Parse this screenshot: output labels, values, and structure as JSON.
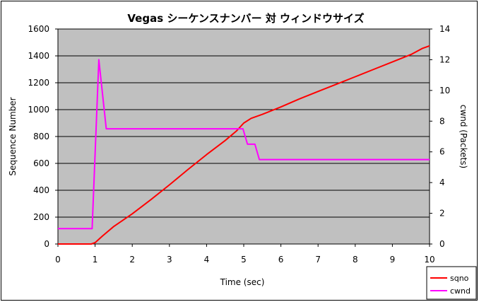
{
  "chart_data": {
    "type": "line",
    "title": "Vegas シーケンスナンバー 対 ウィンドウサイズ",
    "xlabel": "Time (sec)",
    "ylabel": "Sequence Number",
    "y2label": "cwnd (Packets)",
    "xlim": [
      0,
      10
    ],
    "ylim": [
      0,
      1600
    ],
    "y2lim": [
      0,
      14
    ],
    "x_ticks": [
      "0",
      "1",
      "2",
      "3",
      "4",
      "5",
      "6",
      "7",
      "8",
      "9",
      "10"
    ],
    "y_ticks": [
      "0",
      "200",
      "400",
      "600",
      "800",
      "1000",
      "1200",
      "1400",
      "1600"
    ],
    "y2_ticks": [
      "0",
      "2",
      "4",
      "6",
      "8",
      "10",
      "12",
      "14"
    ],
    "grid": true,
    "legend_position": "bottom-right",
    "series": [
      {
        "name": "sqno",
        "axis": "left",
        "color": "#ff0000",
        "x": [
          0,
          0.9,
          1.0,
          1.2,
          1.5,
          2.0,
          2.5,
          3.0,
          3.5,
          4.0,
          4.5,
          4.8,
          5.0,
          5.2,
          5.5,
          6.0,
          6.5,
          7.0,
          7.5,
          8.0,
          8.5,
          9.0,
          9.5,
          9.8,
          10.0
        ],
        "y": [
          0,
          0,
          10,
          60,
          130,
          225,
          330,
          440,
          555,
          665,
          770,
          840,
          900,
          935,
          965,
          1020,
          1080,
          1135,
          1190,
          1245,
          1300,
          1355,
          1410,
          1455,
          1475
        ]
      },
      {
        "name": "cwnd",
        "axis": "right",
        "color": "#ff00ff",
        "x": [
          0,
          0.92,
          1.1,
          1.3,
          1.32,
          4.98,
          5.1,
          5.3,
          5.42,
          10.0
        ],
        "y": [
          1,
          1,
          12,
          7.5,
          7.5,
          7.5,
          6.5,
          6.5,
          5.5,
          5.5
        ]
      }
    ]
  }
}
